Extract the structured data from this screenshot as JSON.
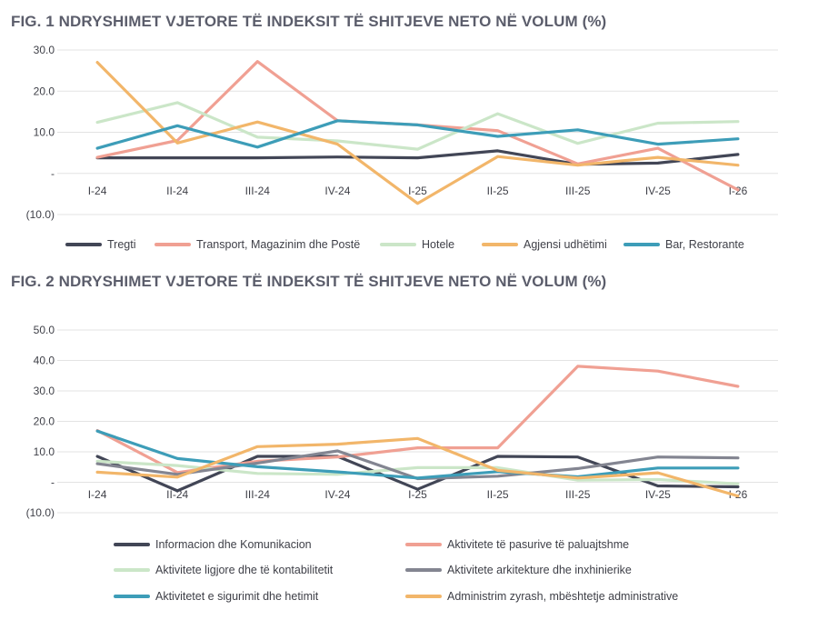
{
  "fig1": {
    "title": "FIG. 1 NDRYSHIMET VJETORE TË INDEKSIT TË SHITJEVE NETO NË VOLUM (%)"
  },
  "fig2": {
    "title": "FIG. 2 NDRYSHIMET VJETORE TË INDEKSIT TË SHITJEVE NETO NË VOLUM (%)"
  },
  "chart_data": [
    {
      "type": "line",
      "title": "FIG. 1 NDRYSHIMET VJETORE TË INDEKSIT TË SHITJEVE NETO NË VOLUM (%)",
      "categories": [
        "I-24",
        "II-24",
        "III-24",
        "IV-24",
        "I-25",
        "II-25",
        "III-25",
        "IV-25",
        "I-26"
      ],
      "y_ticks": [
        30,
        20,
        10,
        0,
        -10
      ],
      "y_tick_labels": [
        "30.0",
        "20.0",
        "10.0",
        "-",
        "(10.0)"
      ],
      "ylim": [
        -10,
        30
      ],
      "grid": true,
      "legend_position": "bottom",
      "series": [
        {
          "name": "Tregti",
          "color": "#424656",
          "values": [
            3.8,
            3.8,
            3.8,
            4.0,
            3.8,
            5.5,
            2.2,
            2.5,
            4.6
          ]
        },
        {
          "name": "Transport, Magazinim dhe Postë",
          "color": "#f0a093",
          "values": [
            3.9,
            8.0,
            27.2,
            12.8,
            11.8,
            10.4,
            2.3,
            6.1,
            -4.0
          ]
        },
        {
          "name": "Hotele",
          "color": "#cbe6c8",
          "values": [
            12.4,
            17.2,
            8.8,
            7.9,
            5.9,
            14.5,
            7.3,
            12.2,
            12.6
          ]
        },
        {
          "name": "Agjensi udhëtimi",
          "color": "#f2b66a",
          "values": [
            27.0,
            7.4,
            12.5,
            7.1,
            -7.3,
            4.1,
            2.0,
            3.9,
            2.0
          ]
        },
        {
          "name": "Bar, Restorante",
          "color": "#3d9db8",
          "values": [
            6.1,
            11.6,
            6.4,
            12.8,
            11.8,
            9.0,
            10.6,
            7.1,
            8.4
          ]
        }
      ]
    },
    {
      "type": "line",
      "title": "FIG. 2 NDRYSHIMET VJETORE TË INDEKSIT TË SHITJEVE NETO NË VOLUM (%)",
      "categories": [
        "I-24",
        "II-24",
        "III-24",
        "IV-24",
        "I-25",
        "II-25",
        "III-25",
        "IV-25",
        "I-26"
      ],
      "y_ticks": [
        50,
        40,
        30,
        20,
        10,
        0,
        -10
      ],
      "y_tick_labels": [
        "50.0",
        "40.0",
        "30.0",
        "20.0",
        "10.0",
        "-",
        "(10.0)"
      ],
      "ylim": [
        -10,
        50
      ],
      "grid": true,
      "legend_position": "bottom",
      "series": [
        {
          "name": "Informacion dhe Komunikacion",
          "color": "#424656",
          "values": [
            8.5,
            -2.8,
            8.5,
            8.5,
            -2.3,
            8.5,
            8.3,
            -1.2,
            -1.5
          ]
        },
        {
          "name": "Aktivitete të pasurive të paluajtshme",
          "color": "#f0a093",
          "values": [
            17.0,
            3.2,
            6.9,
            8.3,
            11.3,
            11.3,
            38.1,
            36.5,
            31.5
          ]
        },
        {
          "name": "Aktivitete ligjore dhe të kontabilitetit",
          "color": "#cbe6c8",
          "values": [
            6.9,
            5.5,
            2.9,
            2.6,
            4.8,
            4.8,
            0.7,
            0.9,
            -0.5
          ]
        },
        {
          "name": "Aktivitete arkitekture dhe inxhinierike",
          "color": "#838591",
          "values": [
            6.1,
            2.6,
            6.3,
            10.3,
            1.2,
            2.0,
            4.5,
            8.3,
            8.0
          ]
        },
        {
          "name": "Aktivitetet e sigurimit dhe hetimit",
          "color": "#3d9db8",
          "values": [
            16.8,
            7.8,
            5.1,
            3.4,
            1.4,
            3.5,
            1.8,
            4.7,
            4.7
          ]
        },
        {
          "name": "Administrim zyrash, mbështetje administrative",
          "color": "#f2b66a",
          "values": [
            3.3,
            1.7,
            11.7,
            12.5,
            14.4,
            3.9,
            1.4,
            3.1,
            -4.5
          ]
        }
      ]
    }
  ]
}
